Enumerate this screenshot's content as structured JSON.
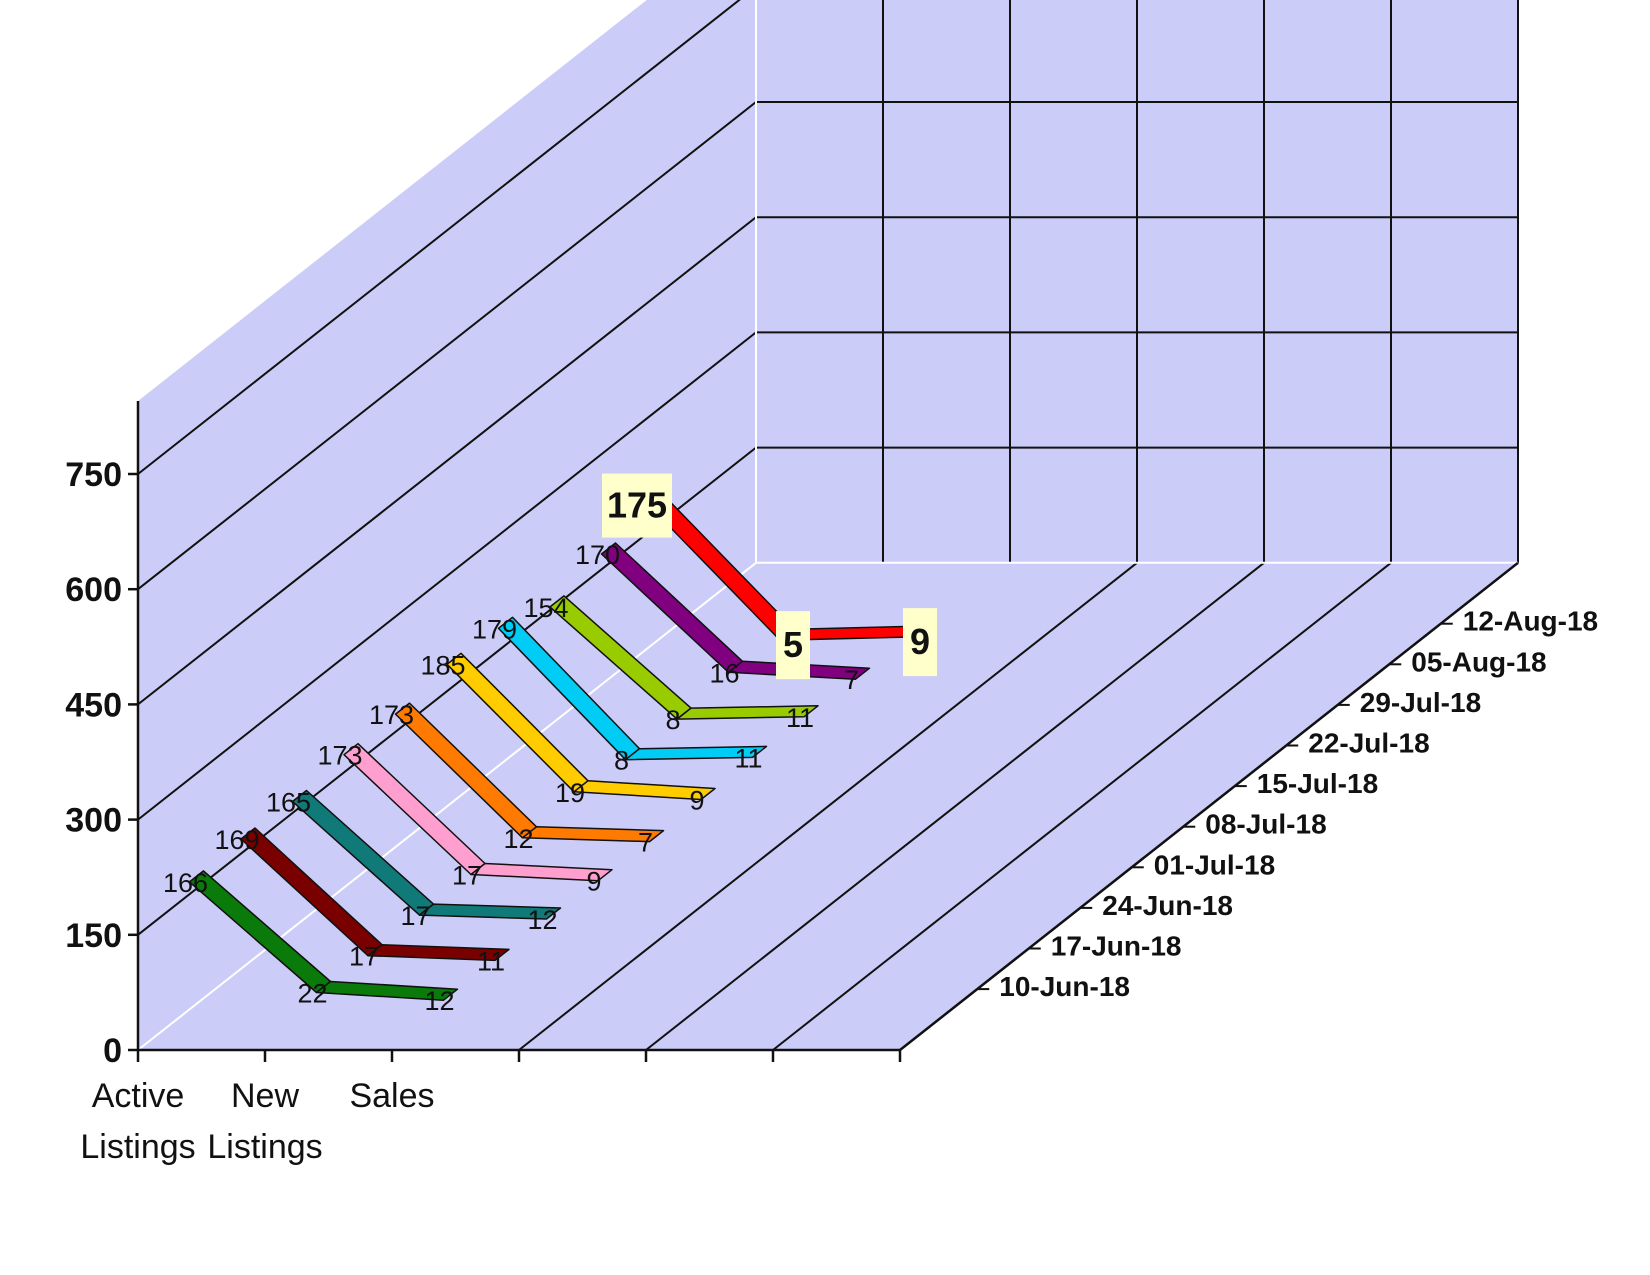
{
  "chart_data": {
    "type": "line",
    "subtype": "3d-ribbon",
    "categories": [
      [
        "Active",
        "Listings"
      ],
      [
        "New",
        "Listings"
      ],
      [
        "Sales"
      ]
    ],
    "x": [
      "Active Listings",
      "New Listings",
      "Sales"
    ],
    "series": [
      {
        "name": "10-Jun-18",
        "values": [
          166,
          22,
          12
        ],
        "color": "#0a7a0a"
      },
      {
        "name": "17-Jun-18",
        "values": [
          169,
          17,
          11
        ],
        "color": "#7a0000"
      },
      {
        "name": "24-Jun-18",
        "values": [
          165,
          17,
          12
        ],
        "color": "#0f7a78"
      },
      {
        "name": "01-Jul-18",
        "values": [
          173,
          17,
          9
        ],
        "color": "#ff9fcf"
      },
      {
        "name": "08-Jul-18",
        "values": [
          173,
          12,
          7
        ],
        "color": "#ff7a00"
      },
      {
        "name": "15-Jul-18",
        "values": [
          185,
          19,
          9
        ],
        "color": "#ffcc00"
      },
      {
        "name": "22-Jul-18",
        "values": [
          179,
          8,
          11
        ],
        "color": "#00ccf5"
      },
      {
        "name": "29-Jul-18",
        "values": [
          154,
          8,
          11
        ],
        "color": "#99cc00"
      },
      {
        "name": "05-Aug-18",
        "values": [
          170,
          16,
          7
        ],
        "color": "#800080"
      },
      {
        "name": "12-Aug-18",
        "values": [
          175,
          5,
          9
        ],
        "color": "#ff0000"
      }
    ],
    "yticks": [
      "0",
      "150",
      "300",
      "450",
      "600",
      "750"
    ],
    "ylim": [
      0,
      750
    ],
    "grid": true,
    "highlighted_series": "12-Aug-18",
    "wall_color": "#ccccf8",
    "title": "",
    "xlabel": "",
    "ylabel": ""
  }
}
